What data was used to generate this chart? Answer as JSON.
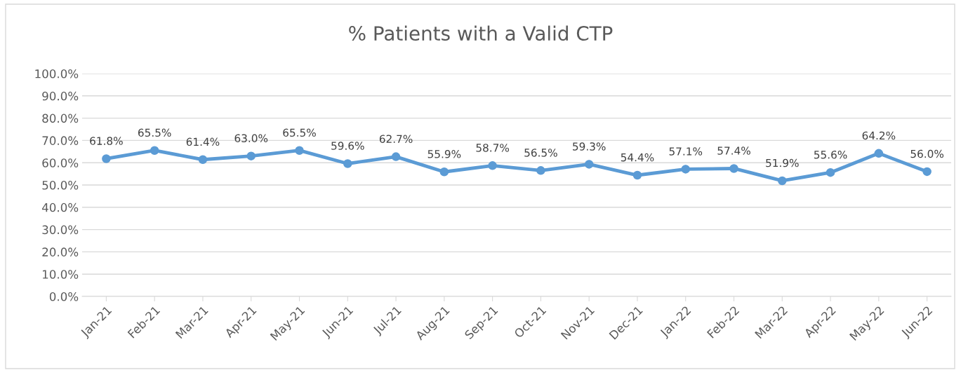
{
  "chart_data": {
    "type": "line",
    "title": "% Patients with a Valid CTP",
    "categories": [
      "Jan-21",
      "Feb-21",
      "Mar-21",
      "Apr-21",
      "May-21",
      "Jun-21",
      "Jul-21",
      "Aug-21",
      "Sep-21",
      "Oct-21",
      "Nov-21",
      "Dec-21",
      "Jan-22",
      "Feb-22",
      "Mar-22",
      "Apr-22",
      "May-22",
      "Jun-22"
    ],
    "series": [
      {
        "color": "#5b9bd5",
        "values": [
          61.8,
          65.5,
          61.4,
          63.0,
          65.5,
          59.6,
          62.7,
          55.9,
          58.7,
          56.5,
          59.3,
          54.4,
          57.1,
          57.4,
          51.9,
          55.6,
          64.2,
          56.0
        ],
        "value_labels": [
          "61.8%",
          "65.5%",
          "61.4%",
          "63.0%",
          "65.5%",
          "59.6%",
          "62.7%",
          "55.9%",
          "58.7%",
          "56.5%",
          "59.3%",
          "54.4%",
          "57.1%",
          "57.4%",
          "51.9%",
          "55.6%",
          "64.2%",
          "56.0%"
        ]
      }
    ],
    "ylim": [
      0,
      100
    ],
    "yticks": [
      {
        "value": 0,
        "label": "0.0%"
      },
      {
        "value": 10,
        "label": "10.0%"
      },
      {
        "value": 20,
        "label": "20.0%"
      },
      {
        "value": 30,
        "label": "30.0%"
      },
      {
        "value": 40,
        "label": "40.0%"
      },
      {
        "value": 50,
        "label": "50.0%"
      },
      {
        "value": 60,
        "label": "60.0%"
      },
      {
        "value": 70,
        "label": "70.0%"
      },
      {
        "value": 80,
        "label": "80.0%"
      },
      {
        "value": 90,
        "label": "90.0%"
      },
      {
        "value": 100,
        "label": "100.0%"
      }
    ],
    "grid": "y",
    "marker": "circle",
    "line_style": "solid",
    "legend": false
  }
}
